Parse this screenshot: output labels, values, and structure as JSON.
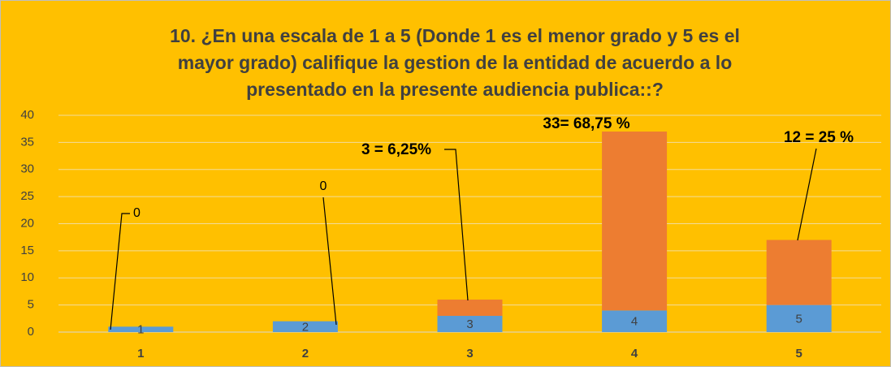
{
  "chart_data": {
    "type": "stacked_bar",
    "title": [
      "10.  ¿En una escala de 1 a 5 (Donde 1 es el  menor grado y 5 es el",
      "mayor grado) califique la gestion de la entidad de acuerdo a lo",
      "presentado en la presente audiencia publica::?"
    ],
    "categories": [
      "1",
      "2",
      "3",
      "4",
      "5"
    ],
    "series": [
      {
        "color": "#5b9bd5",
        "values": [
          1,
          2,
          3,
          4,
          5
        ]
      },
      {
        "color": "#ed7d31",
        "values": [
          0,
          0,
          3,
          33,
          12
        ],
        "value_labels": [
          "0",
          "0",
          "3  = 6,25%",
          "33=  68,75 %",
          "12  =  25 %"
        ]
      }
    ],
    "ylim": [
      0,
      40
    ],
    "yticks": [
      0,
      5,
      10,
      15,
      20,
      25,
      30,
      35,
      40
    ],
    "grid": true
  }
}
